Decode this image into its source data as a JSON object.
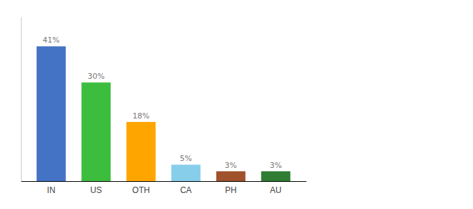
{
  "chart_data": {
    "type": "bar",
    "categories": [
      "IN",
      "US",
      "OTH",
      "CA",
      "PH",
      "AU"
    ],
    "values": [
      41,
      30,
      18,
      5,
      3,
      3
    ],
    "value_labels": [
      "41%",
      "30%",
      "18%",
      "5%",
      "3%",
      "3%"
    ],
    "colors": [
      "#4472C4",
      "#3DBD3D",
      "#FFA500",
      "#87CEEB",
      "#A0522D",
      "#2E7D32"
    ],
    "ylim": [
      0,
      50
    ],
    "data_labels": true,
    "tick_labels": "x"
  }
}
